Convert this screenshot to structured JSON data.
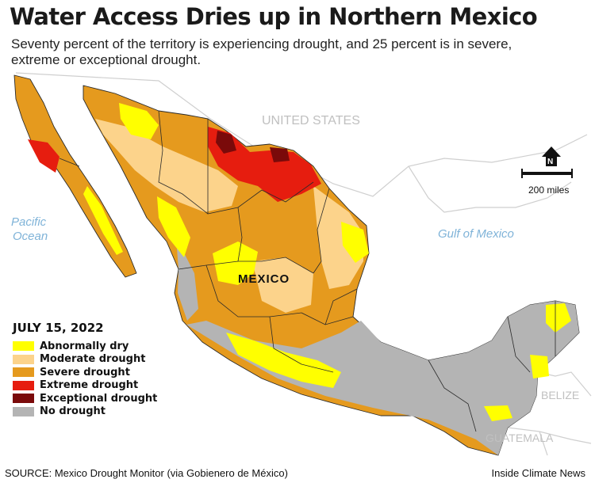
{
  "title": "Water Access Dries up in Northern Mexico",
  "subtitle": "Seventy percent of the territory is experiencing drought, and 25 percent is in severe, extreme or exceptional drought.",
  "map_labels": {
    "united_states": "UNITED STATES",
    "mexico": "MEXICO",
    "pacific_line1": "Pacific",
    "pacific_line2": "Ocean",
    "gulf": "Gulf of Mexico",
    "belize": "BELIZE",
    "guatemala": "GUATEMALA",
    "north": "N",
    "scale": "200 miles"
  },
  "legend": {
    "date": "JULY 15, 2022",
    "items": [
      {
        "label": "Abnormally dry",
        "color": "#ffff00"
      },
      {
        "label": "Moderate drought",
        "color": "#fcd38b"
      },
      {
        "label": "Severe drought",
        "color": "#e59a1e"
      },
      {
        "label": "Extreme drought",
        "color": "#e61d0f"
      },
      {
        "label": "Exceptional drought",
        "color": "#7a0a0a"
      },
      {
        "label": "No drought",
        "color": "#b4b4b4"
      }
    ]
  },
  "colors": {
    "water_label": "#7fb3d8",
    "neighbor_fill": "#ffffff",
    "borders": "#2a2a2a"
  },
  "source": "SOURCE: Mexico Drought Monitor (via Gobienero de México)",
  "credit": "Inside Climate News"
}
